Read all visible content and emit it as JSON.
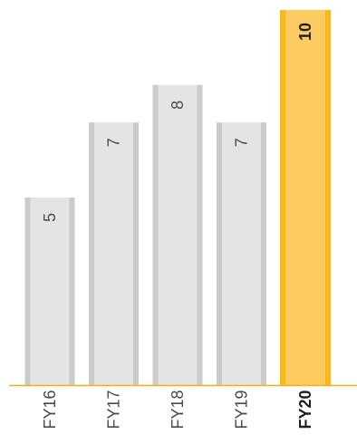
{
  "chart_data": {
    "type": "bar",
    "categories": [
      "FY16",
      "FY17",
      "FY18",
      "FY19",
      "FY20"
    ],
    "values": [
      5,
      7,
      8,
      7,
      10
    ],
    "data_labels": [
      "5",
      "7",
      "8",
      "7",
      "10"
    ],
    "highlight_index": 4,
    "ylim": [
      0,
      10
    ],
    "grid": false,
    "legend": "none",
    "colors": {
      "bar": "#e4e4e6",
      "bar_edge": "#cbcbcd",
      "highlight_fill": "#fccc63",
      "highlight_edge": "#fdb813",
      "axis": "#f6ad1a",
      "text": "#4a4a4a"
    }
  }
}
